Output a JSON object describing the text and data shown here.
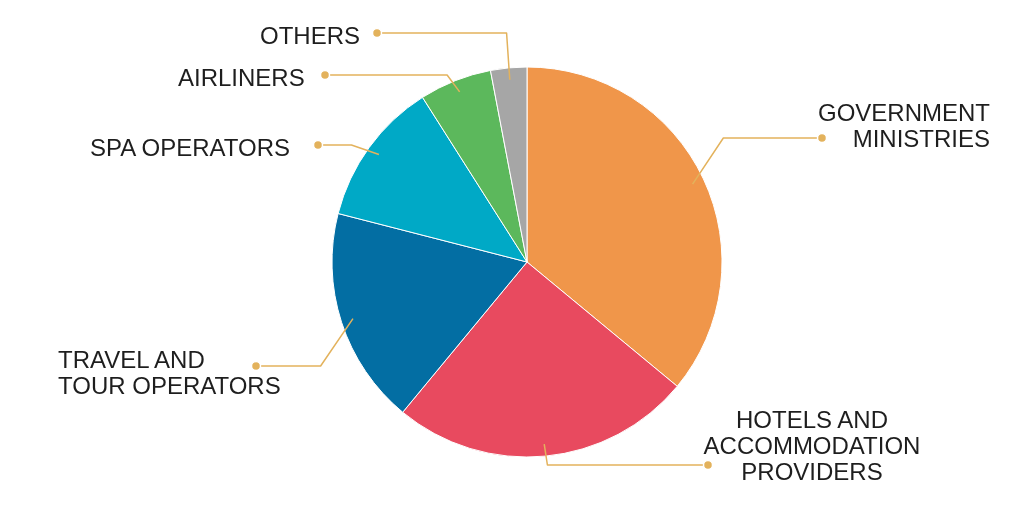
{
  "chart_data": {
    "type": "pie",
    "categories": [
      "GOVERNMENT MINISTRIES",
      "HOTELS AND ACCOMMODATION PROVIDERS",
      "TRAVEL AND TOUR OPERATORS",
      "SPA OPERATORS",
      "AIRLINERS",
      "OTHERS"
    ],
    "values": [
      36,
      25,
      18,
      12,
      6,
      3
    ],
    "colors": [
      "#f0964a",
      "#e84a5f",
      "#036ea3",
      "#00a9c6",
      "#5cb85c",
      "#a6a6a6"
    ]
  }
}
